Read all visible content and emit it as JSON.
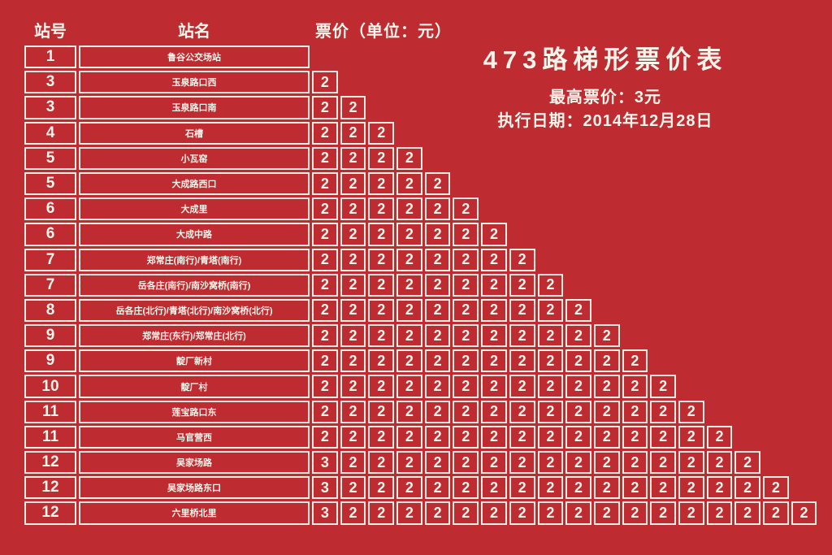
{
  "page": {
    "background_color": "#BE2B31",
    "line_color": "#F2EDE2",
    "text_color": "#F8F4EA"
  },
  "title_panel": {
    "title": "473路梯形票价表",
    "max_fare": "最高票价：3元",
    "effective_date": "执行日期：2014年12月28日"
  },
  "table": {
    "headers": {
      "station_no": "站号",
      "station_name": "站名",
      "fare": "票价（单位：元）"
    },
    "rows": [
      {
        "no": "1",
        "name": "鲁谷公交场站",
        "fares": []
      },
      {
        "no": "3",
        "name": "玉泉路口西",
        "fares": [
          2
        ]
      },
      {
        "no": "3",
        "name": "玉泉路口南",
        "fares": [
          2,
          2
        ]
      },
      {
        "no": "4",
        "name": "石槽",
        "fares": [
          2,
          2,
          2
        ]
      },
      {
        "no": "5",
        "name": "小瓦窑",
        "fares": [
          2,
          2,
          2,
          2
        ]
      },
      {
        "no": "5",
        "name": "大成路西口",
        "fares": [
          2,
          2,
          2,
          2,
          2
        ]
      },
      {
        "no": "6",
        "name": "大成里",
        "fares": [
          2,
          2,
          2,
          2,
          2,
          2
        ]
      },
      {
        "no": "6",
        "name": "大成中路",
        "fares": [
          2,
          2,
          2,
          2,
          2,
          2,
          2
        ]
      },
      {
        "no": "7",
        "name": "郑常庄(南行)/青塔(南行)",
        "fares": [
          2,
          2,
          2,
          2,
          2,
          2,
          2,
          2
        ]
      },
      {
        "no": "7",
        "name": "岳各庄(南行)/南沙窝桥(南行)",
        "fares": [
          2,
          2,
          2,
          2,
          2,
          2,
          2,
          2,
          2
        ]
      },
      {
        "no": "8",
        "name": "岳各庄(北行)/青塔(北行)/南沙窝桥(北行)",
        "fares": [
          2,
          2,
          2,
          2,
          2,
          2,
          2,
          2,
          2,
          2
        ]
      },
      {
        "no": "9",
        "name": "郑常庄(东行)/郑常庄(北行)",
        "fares": [
          2,
          2,
          2,
          2,
          2,
          2,
          2,
          2,
          2,
          2,
          2
        ]
      },
      {
        "no": "9",
        "name": "靛厂新村",
        "fares": [
          2,
          2,
          2,
          2,
          2,
          2,
          2,
          2,
          2,
          2,
          2,
          2
        ]
      },
      {
        "no": "10",
        "name": "靛厂村",
        "fares": [
          2,
          2,
          2,
          2,
          2,
          2,
          2,
          2,
          2,
          2,
          2,
          2,
          2
        ]
      },
      {
        "no": "11",
        "name": "莲宝路口东",
        "fares": [
          2,
          2,
          2,
          2,
          2,
          2,
          2,
          2,
          2,
          2,
          2,
          2,
          2,
          2
        ]
      },
      {
        "no": "11",
        "name": "马官营西",
        "fares": [
          2,
          2,
          2,
          2,
          2,
          2,
          2,
          2,
          2,
          2,
          2,
          2,
          2,
          2,
          2
        ]
      },
      {
        "no": "12",
        "name": "吴家场路",
        "fares": [
          3,
          2,
          2,
          2,
          2,
          2,
          2,
          2,
          2,
          2,
          2,
          2,
          2,
          2,
          2,
          2
        ]
      },
      {
        "no": "12",
        "name": "吴家场路东口",
        "fares": [
          3,
          2,
          2,
          2,
          2,
          2,
          2,
          2,
          2,
          2,
          2,
          2,
          2,
          2,
          2,
          2,
          2
        ]
      },
      {
        "no": "12",
        "name": "六里桥北里",
        "fares": [
          3,
          2,
          2,
          2,
          2,
          2,
          2,
          2,
          2,
          2,
          2,
          2,
          2,
          2,
          2,
          2,
          2,
          2
        ]
      }
    ]
  }
}
